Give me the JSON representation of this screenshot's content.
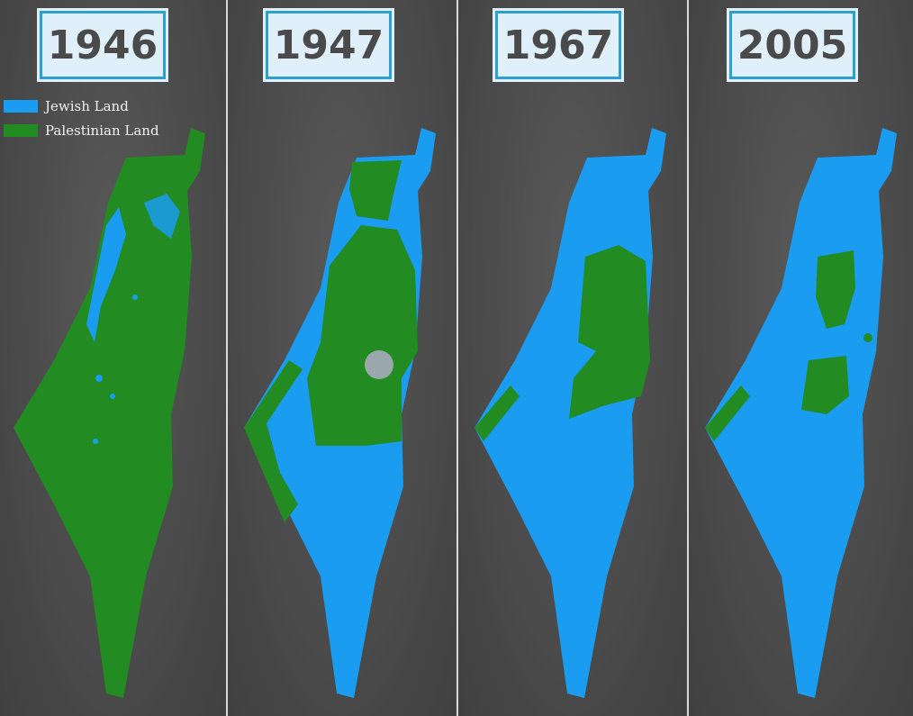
{
  "colors": {
    "jewish": "#1a9cf0",
    "palestinian": "#228b22",
    "jerusalem": "#9aa7ad",
    "background": "#4a4a4a",
    "label_border": "#2f9fcf",
    "label_bg": "#dff0fa"
  },
  "legend": [
    {
      "label": "Jewish Land",
      "color": "#1a9cf0"
    },
    {
      "label": "Palestinian Land",
      "color": "#228b22"
    }
  ],
  "panels": [
    {
      "year": "1946"
    },
    {
      "year": "1947"
    },
    {
      "year": "1967"
    },
    {
      "year": "2005"
    }
  ]
}
